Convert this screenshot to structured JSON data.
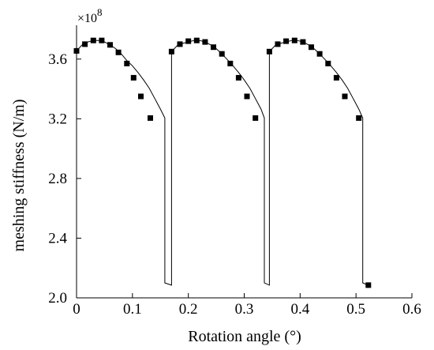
{
  "chart_data": {
    "type": "line",
    "title": "",
    "xlabel": "Rotation angle (°)",
    "ylabel": "meshing stiffness (N/m)",
    "y_multiplier": {
      "base": "×10",
      "exponent": "8"
    },
    "xlim": [
      0,
      0.6
    ],
    "ylim": [
      2.0,
      3.8
    ],
    "x_ticks": [
      0,
      0.1,
      0.2,
      0.3,
      0.4,
      0.5,
      0.6
    ],
    "x_tick_labels": [
      "0",
      "0.1",
      "0.2",
      "0.3",
      "0.4",
      "0.5",
      "0.6"
    ],
    "y_ticks": [
      2.0,
      2.4,
      2.8,
      3.2,
      3.6
    ],
    "y_tick_labels": [
      "2.0",
      "2.4",
      "2.8",
      "3.2",
      "3.6"
    ],
    "grid": false,
    "line_color": "#000000",
    "marker": "square",
    "series": [
      {
        "line": [
          [
            0.0,
            3.655
          ],
          [
            0.01,
            3.695
          ],
          [
            0.02,
            3.715
          ],
          [
            0.03,
            3.725
          ],
          [
            0.04,
            3.725
          ],
          [
            0.05,
            3.715
          ],
          [
            0.06,
            3.695
          ],
          [
            0.07,
            3.67
          ],
          [
            0.08,
            3.635
          ],
          [
            0.09,
            3.59
          ],
          [
            0.1,
            3.555
          ],
          [
            0.11,
            3.51
          ],
          [
            0.12,
            3.46
          ],
          [
            0.13,
            3.405
          ],
          [
            0.14,
            3.335
          ],
          [
            0.15,
            3.265
          ],
          [
            0.158,
            3.205
          ],
          [
            0.158,
            2.1
          ],
          [
            0.17,
            2.085
          ],
          [
            0.17,
            3.65
          ],
          [
            0.18,
            3.69
          ],
          [
            0.19,
            3.705
          ],
          [
            0.2,
            3.715
          ],
          [
            0.21,
            3.725
          ],
          [
            0.22,
            3.725
          ],
          [
            0.23,
            3.715
          ],
          [
            0.24,
            3.695
          ],
          [
            0.25,
            3.67
          ],
          [
            0.26,
            3.635
          ],
          [
            0.27,
            3.595
          ],
          [
            0.28,
            3.555
          ],
          [
            0.29,
            3.51
          ],
          [
            0.3,
            3.46
          ],
          [
            0.31,
            3.405
          ],
          [
            0.32,
            3.335
          ],
          [
            0.33,
            3.265
          ],
          [
            0.336,
            3.205
          ],
          [
            0.336,
            2.1
          ],
          [
            0.345,
            2.085
          ],
          [
            0.345,
            3.65
          ],
          [
            0.355,
            3.69
          ],
          [
            0.365,
            3.705
          ],
          [
            0.375,
            3.715
          ],
          [
            0.385,
            3.725
          ],
          [
            0.395,
            3.725
          ],
          [
            0.405,
            3.715
          ],
          [
            0.415,
            3.695
          ],
          [
            0.425,
            3.67
          ],
          [
            0.435,
            3.635
          ],
          [
            0.445,
            3.595
          ],
          [
            0.455,
            3.555
          ],
          [
            0.465,
            3.51
          ],
          [
            0.475,
            3.46
          ],
          [
            0.485,
            3.405
          ],
          [
            0.495,
            3.335
          ],
          [
            0.505,
            3.265
          ],
          [
            0.512,
            3.205
          ],
          [
            0.512,
            2.1
          ],
          [
            0.522,
            2.085
          ]
        ],
        "markers": [
          [
            0.0,
            3.655
          ],
          [
            0.015,
            3.7
          ],
          [
            0.03,
            3.725
          ],
          [
            0.045,
            3.725
          ],
          [
            0.06,
            3.695
          ],
          [
            0.075,
            3.645
          ],
          [
            0.09,
            3.57
          ],
          [
            0.102,
            3.475
          ],
          [
            0.115,
            3.35
          ],
          [
            0.132,
            3.205
          ],
          [
            0.17,
            3.65
          ],
          [
            0.185,
            3.7
          ],
          [
            0.2,
            3.72
          ],
          [
            0.215,
            3.725
          ],
          [
            0.23,
            3.715
          ],
          [
            0.245,
            3.68
          ],
          [
            0.26,
            3.635
          ],
          [
            0.275,
            3.57
          ],
          [
            0.29,
            3.475
          ],
          [
            0.305,
            3.35
          ],
          [
            0.32,
            3.205
          ],
          [
            0.345,
            3.65
          ],
          [
            0.36,
            3.7
          ],
          [
            0.375,
            3.72
          ],
          [
            0.39,
            3.725
          ],
          [
            0.405,
            3.715
          ],
          [
            0.42,
            3.68
          ],
          [
            0.435,
            3.635
          ],
          [
            0.45,
            3.57
          ],
          [
            0.465,
            3.475
          ],
          [
            0.48,
            3.35
          ],
          [
            0.505,
            3.205
          ],
          [
            0.522,
            2.085
          ]
        ]
      }
    ]
  }
}
